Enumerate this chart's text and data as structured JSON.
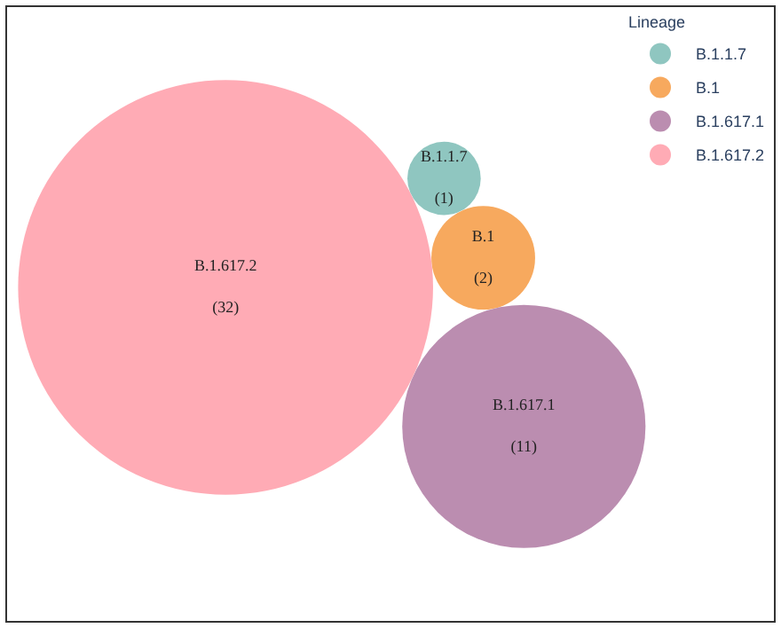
{
  "chart_data": {
    "type": "other",
    "legend_title": "Lineage",
    "legend": "top right",
    "series": [
      {
        "name": "B.1.1.7",
        "color": "#8fc6c0",
        "values": [
          1
        ],
        "value_labels": [
          "(1)"
        ]
      },
      {
        "name": "B.1",
        "color": "#f7a95e",
        "values": [
          2
        ],
        "value_labels": [
          "(2)"
        ]
      },
      {
        "name": "B.1.617.1",
        "color": "#bb8db0",
        "values": [
          11
        ],
        "value_labels": [
          "(11)"
        ]
      },
      {
        "name": "B.1.617.2",
        "color": "#ffabb5",
        "values": [
          32
        ],
        "value_labels": [
          "(32)"
        ]
      }
    ]
  }
}
